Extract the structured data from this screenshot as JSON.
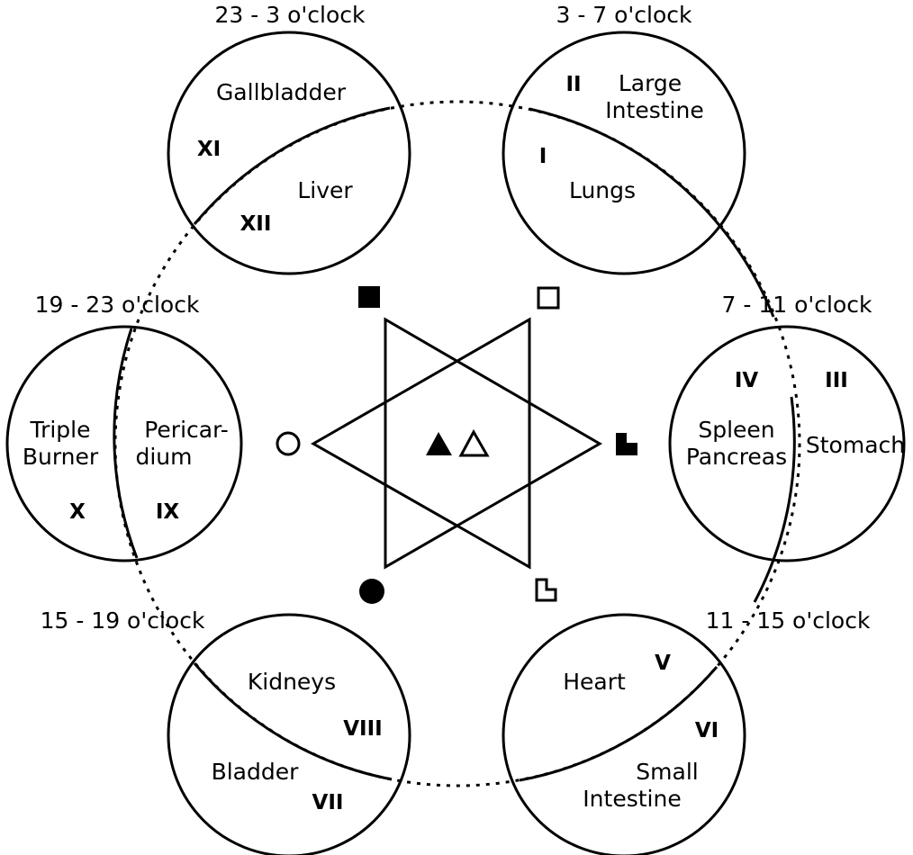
{
  "time_labels": {
    "top_left": "23 - 3 o'clock",
    "top_right": "3 - 7 o'clock",
    "right": "7 - 11 o'clock",
    "bottom_right": "11 - 15 o'clock",
    "bottom_left": "15 - 19 o'clock",
    "left": "19 - 23 o'clock"
  },
  "organs": {
    "gallbladder": "Gallbladder",
    "liver": "Liver",
    "large_intestine_1": "Large",
    "large_intestine_2": "Intestine",
    "lungs": "Lungs",
    "spleen_1": "Spleen",
    "spleen_2": "Pancreas",
    "stomach": "Stomach",
    "heart": "Heart",
    "small_intestine_1": "Small",
    "small_intestine_2": "Intestine",
    "kidneys": "Kidneys",
    "bladder": "Bladder",
    "triple_burner_1": "Triple",
    "triple_burner_2": "Burner",
    "pericardium_1": "Pericar-",
    "pericardium_2": "dium"
  },
  "numerals": {
    "i": "I",
    "ii": "II",
    "iii": "III",
    "iv": "IV",
    "v": "V",
    "vi": "VI",
    "vii": "VII",
    "viii": "VIII",
    "ix": "IX",
    "x": "X",
    "xi": "XI",
    "xii": "XII"
  },
  "colors": {
    "ink": "#000000",
    "background": "#ffffff"
  }
}
